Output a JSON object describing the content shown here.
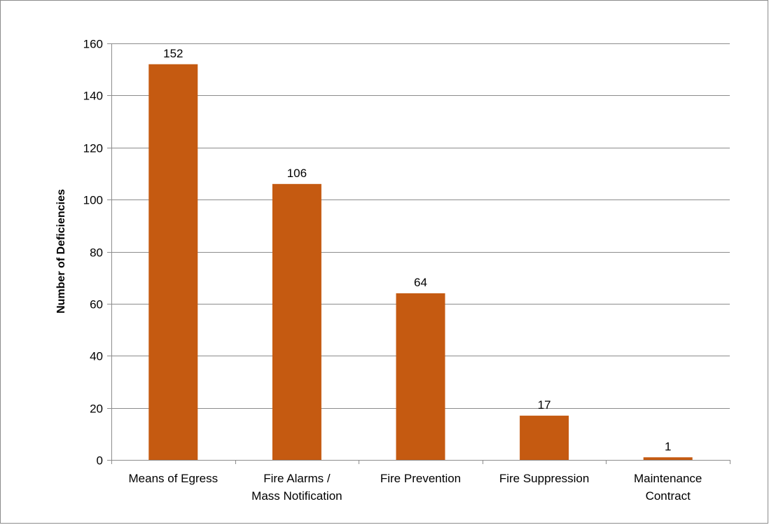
{
  "chart_data": {
    "type": "bar",
    "categories": [
      [
        "Means of Egress"
      ],
      [
        "Fire Alarms /",
        "Mass Notification"
      ],
      [
        "Fire Prevention"
      ],
      [
        "Fire Suppression"
      ],
      [
        "Maintenance",
        "Contract"
      ]
    ],
    "values": [
      152,
      106,
      64,
      17,
      1
    ],
    "title": "",
    "xlabel": "",
    "ylabel": "Number of Deficiencies",
    "ylim": [
      0,
      160
    ],
    "yticks": [
      0,
      20,
      40,
      60,
      80,
      100,
      120,
      140,
      160
    ],
    "grid": true,
    "legend": "none",
    "bar_color": "#C55A11",
    "grid_color": "#8c8c8c"
  }
}
